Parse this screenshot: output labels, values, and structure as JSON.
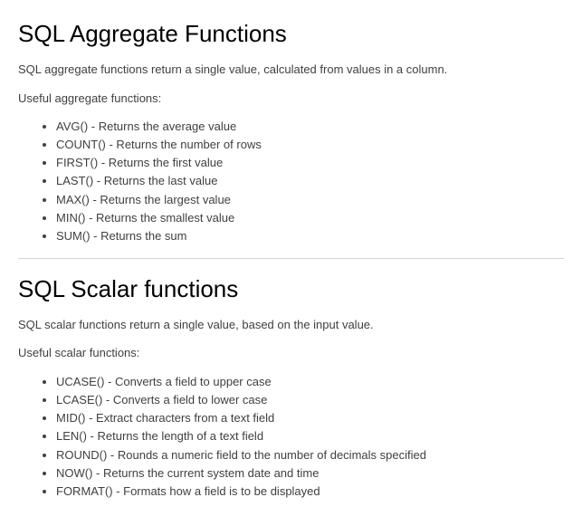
{
  "sections": [
    {
      "heading": "SQL Aggregate Functions",
      "intro": "SQL aggregate functions return a single value, calculated from values in a column.",
      "subintro": "Useful aggregate functions:",
      "items": [
        "AVG() - Returns the average value",
        "COUNT() - Returns the number of rows",
        "FIRST() - Returns the first value",
        "LAST() - Returns the last value",
        "MAX() - Returns the largest value",
        "MIN() - Returns the smallest value",
        "SUM() - Returns the sum"
      ]
    },
    {
      "heading": "SQL Scalar functions",
      "intro": "SQL scalar functions return a single value, based on the input value.",
      "subintro": "Useful scalar functions:",
      "items": [
        "UCASE() - Converts a field to upper case",
        "LCASE() - Converts a field to lower case",
        "MID() - Extract characters from a text field",
        "LEN() - Returns the length of a text field",
        "ROUND() - Rounds a numeric field to the number of decimals specified",
        "NOW() - Returns the current system date and time",
        "FORMAT() - Formats how a field is to be displayed"
      ]
    }
  ]
}
